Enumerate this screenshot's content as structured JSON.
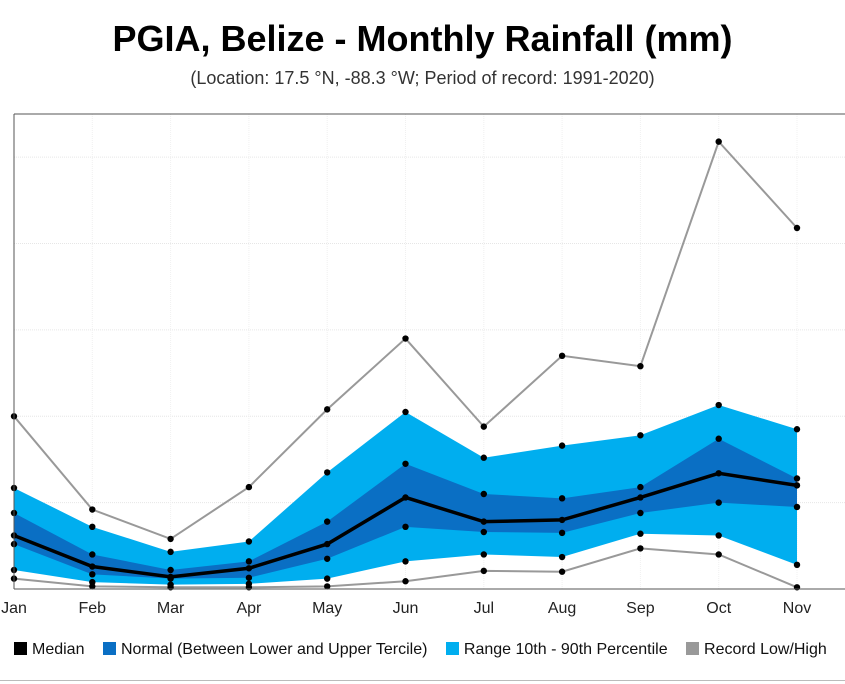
{
  "title": "PGIA, Belize - Monthly Rainfall (mm)",
  "subtitle": "(Location: 17.5 °N, -88.3 °W; Period of record: 1991-2020)",
  "chart_data": {
    "type": "area",
    "categories": [
      "Jan",
      "Feb",
      "Mar",
      "Apr",
      "May",
      "Jun",
      "Jul",
      "Aug",
      "Sep",
      "Oct",
      "Nov"
    ],
    "ylim": [
      0,
      550
    ],
    "grid": true,
    "legend_position": "bottom",
    "series": [
      {
        "name": "Median",
        "color": "#000000",
        "values": [
          62,
          26,
          14,
          24,
          52,
          106,
          78,
          80,
          106,
          134,
          120
        ]
      },
      {
        "name": "Normal (Between Lower and Upper Tercile)",
        "color": "#0a6fc4",
        "lower": [
          52,
          17,
          12,
          13,
          35,
          72,
          66,
          65,
          88,
          100,
          95
        ],
        "upper": [
          88,
          40,
          22,
          32,
          78,
          145,
          110,
          105,
          118,
          174,
          128
        ]
      },
      {
        "name": "Range 10th - 90th Percentile",
        "color": "#00aeef",
        "lower": [
          22,
          8,
          5,
          6,
          12,
          32,
          40,
          37,
          64,
          62,
          28
        ],
        "upper": [
          117,
          72,
          43,
          55,
          135,
          205,
          152,
          166,
          178,
          213,
          185
        ]
      },
      {
        "name": "Record Low/High",
        "color": "#999999",
        "low": [
          12,
          3,
          2,
          2,
          3,
          9,
          21,
          20,
          47,
          40,
          2
        ],
        "high": [
          200,
          92,
          58,
          118,
          208,
          290,
          188,
          270,
          258,
          518,
          418
        ]
      }
    ]
  }
}
